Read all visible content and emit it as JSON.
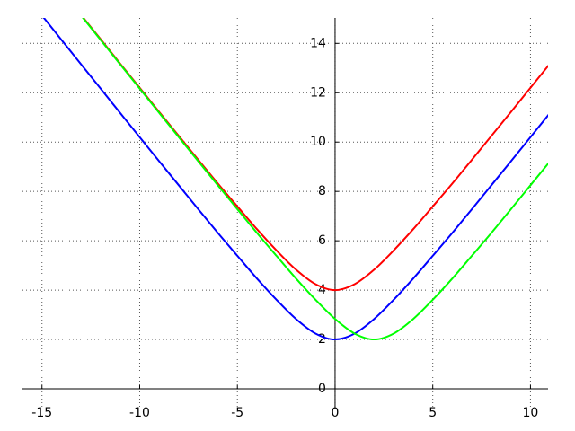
{
  "chart_data": {
    "type": "line",
    "x": [
      -15,
      -14,
      -13,
      -12,
      -11,
      -10,
      -9,
      -8,
      -7,
      -6,
      -5,
      -4,
      -3,
      -2,
      -1,
      0,
      1,
      2,
      3,
      4,
      5,
      6,
      7,
      8,
      9,
      10,
      11
    ],
    "series": [
      {
        "color": "#0000ff",
        "values": [
          15.13,
          14.14,
          13.15,
          12.17,
          11.18,
          10.2,
          9.22,
          8.25,
          7.28,
          6.32,
          5.39,
          4.47,
          3.61,
          2.83,
          2.24,
          2,
          2.24,
          2.83,
          3.61,
          4.47,
          5.39,
          6.32,
          7.28,
          8.25,
          9.22,
          10.2,
          11.18
        ]
      },
      {
        "color": "#ff0000",
        "values": [
          null,
          null,
          15.15,
          14.17,
          13.18,
          12.2,
          11.22,
          10.25,
          9.28,
          8.32,
          7.39,
          6.47,
          5.61,
          4.83,
          4.24,
          4,
          4.24,
          4.83,
          5.61,
          6.47,
          7.39,
          8.32,
          9.28,
          10.25,
          11.22,
          12.2,
          13.18
        ]
      },
      {
        "color": "#00ff00",
        "values": [
          null,
          null,
          15.13,
          14.14,
          13.15,
          12.17,
          11.18,
          10.2,
          9.22,
          8.25,
          7.28,
          6.32,
          5.39,
          4.47,
          3.61,
          2.83,
          2.24,
          2,
          2.24,
          2.83,
          3.61,
          4.47,
          5.39,
          6.32,
          7.28,
          8.25,
          9.22
        ]
      }
    ],
    "xlim": [
      -16,
      10.9
    ],
    "ylim": [
      -0.8,
      15.03
    ],
    "xticks": [
      -15,
      -10,
      -5,
      0,
      5,
      10
    ],
    "yticks": [
      0,
      2,
      4,
      6,
      8,
      10,
      12,
      14
    ],
    "grid": true
  }
}
